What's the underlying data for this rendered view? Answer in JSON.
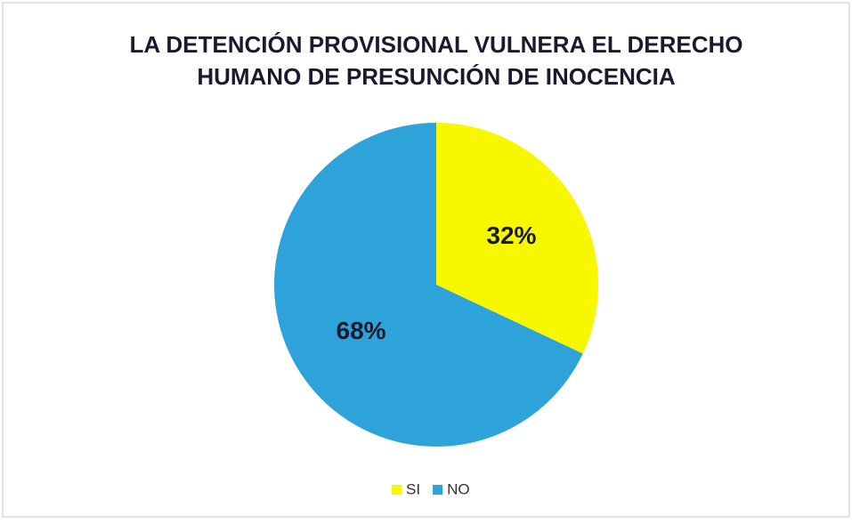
{
  "chart_data": {
    "type": "pie",
    "title": [
      "LA DETENCIÓN PROVISIONAL VULNERA EL DERECHO",
      "HUMANO DE PRESUNCIÓN DE INOCENCIA"
    ],
    "categories": [
      "SI",
      "NO"
    ],
    "values": [
      32,
      68
    ],
    "value_labels": [
      "32%",
      "68%"
    ],
    "colors": [
      "#f7f700",
      "#2ea3d9"
    ],
    "legend": "bottom"
  }
}
